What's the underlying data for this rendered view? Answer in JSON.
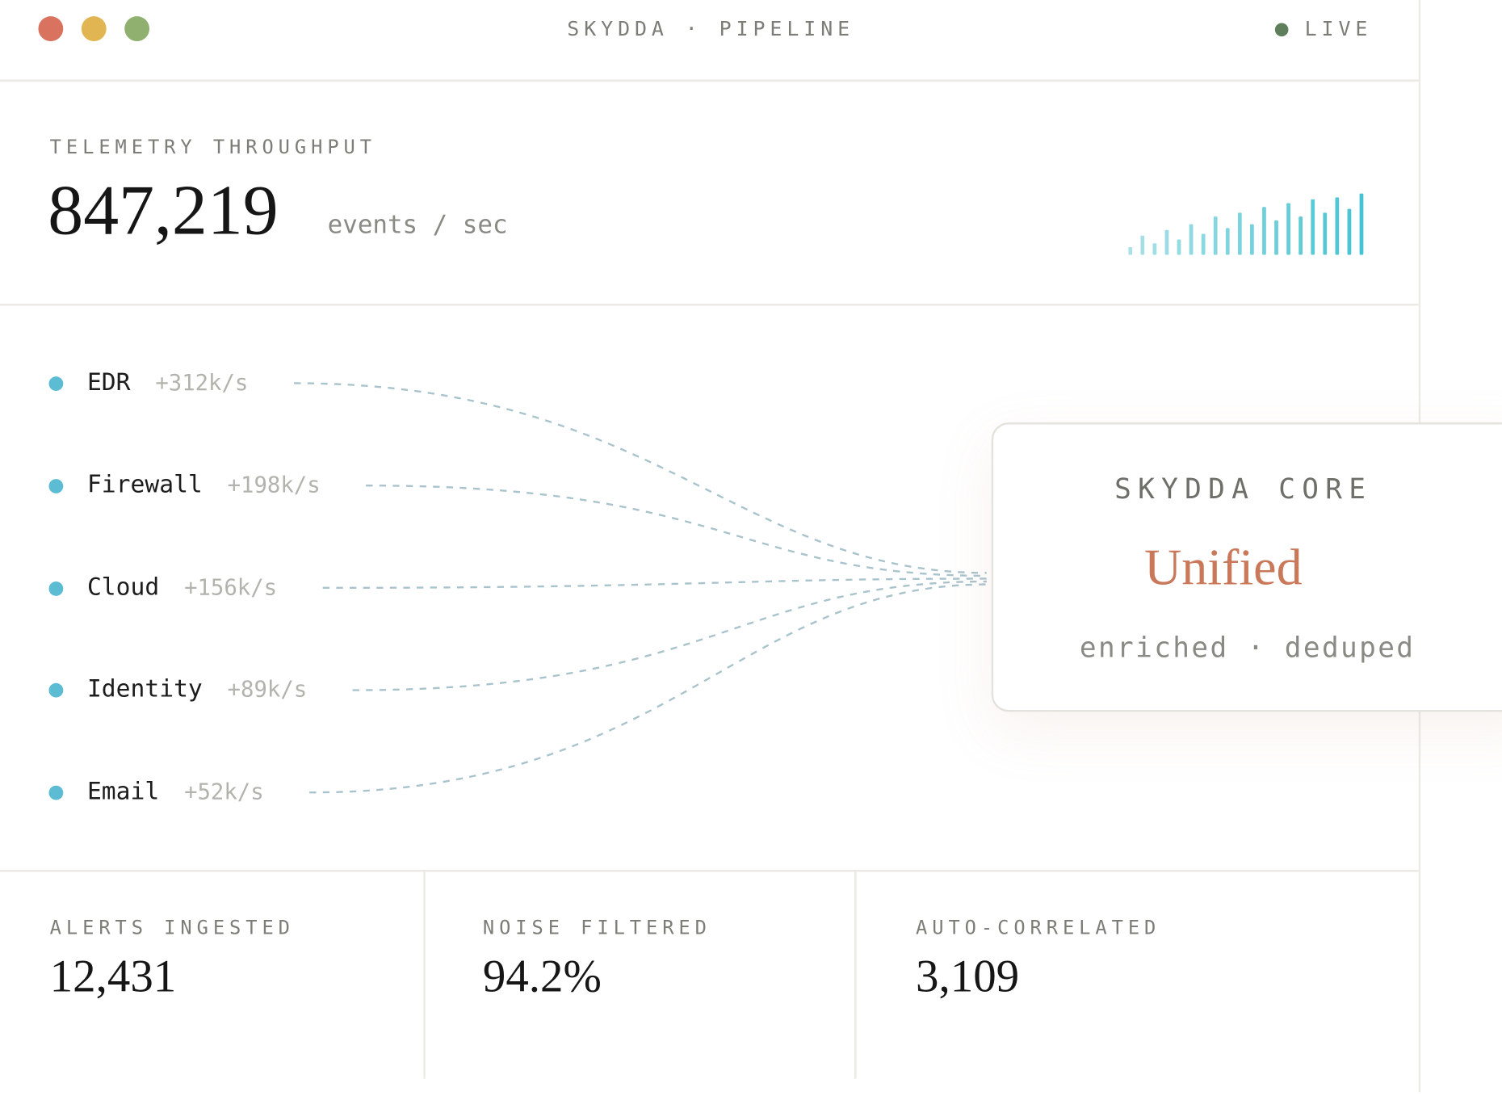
{
  "window": {
    "title": "SKYDDA · PIPELINE",
    "status": "LIVE"
  },
  "throughput": {
    "label": "TELEMETRY THROUGHPUT",
    "value": "847,219",
    "unit": "events / sec",
    "sparkline": [
      8,
      20,
      12,
      26,
      16,
      32,
      22,
      40,
      28,
      44,
      32,
      50,
      36,
      54,
      40,
      58,
      44,
      60,
      48,
      64
    ]
  },
  "sources": [
    {
      "name": "EDR",
      "rate": "+312k/s"
    },
    {
      "name": "Firewall",
      "rate": "+198k/s"
    },
    {
      "name": "Cloud",
      "rate": "+156k/s"
    },
    {
      "name": "Identity",
      "rate": "+89k/s"
    },
    {
      "name": "Email",
      "rate": "+52k/s"
    }
  ],
  "core": {
    "title": "SKYDDA CORE",
    "headline": "Unified",
    "detail": "enriched · deduped"
  },
  "stats": [
    {
      "label": "ALERTS INGESTED",
      "value": "12,431"
    },
    {
      "label": "NOISE FILTERED",
      "value": "94.2%"
    },
    {
      "label": "AUTO-CORRELATED",
      "value": "3,109"
    }
  ]
}
